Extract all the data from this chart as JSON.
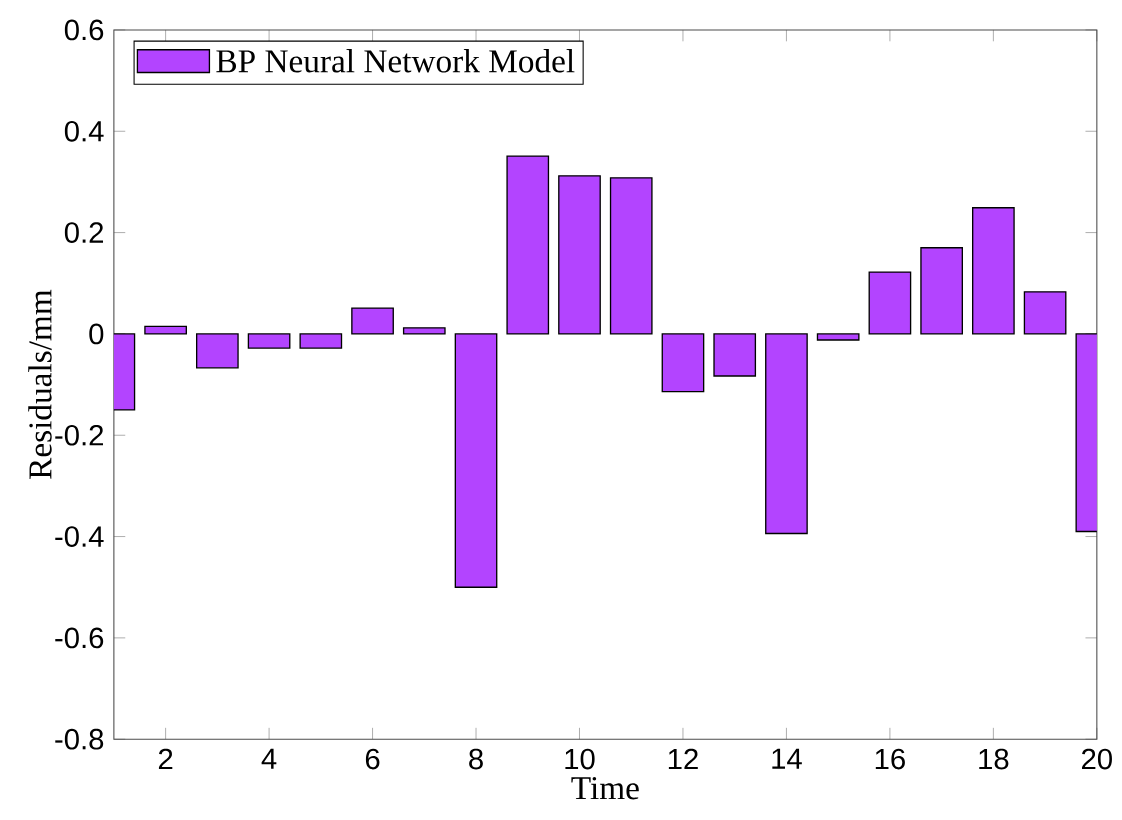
{
  "chart_data": {
    "type": "bar",
    "xlabel": "Time",
    "ylabel": "Residuals/mm",
    "legend": "top left",
    "x": [
      1,
      2,
      3,
      4,
      5,
      6,
      7,
      8,
      9,
      10,
      11,
      12,
      13,
      14,
      15,
      16,
      17,
      18,
      19,
      20
    ],
    "series": [
      {
        "name": "BP Neural Network Model",
        "color": "#b344ff",
        "values": [
          -0.15,
          0.015,
          -0.067,
          -0.028,
          -0.028,
          0.051,
          0.012,
          -0.5,
          0.351,
          0.312,
          0.308,
          -0.114,
          -0.083,
          -0.394,
          -0.012,
          0.122,
          0.17,
          0.249,
          0.083,
          -0.39
        ]
      }
    ],
    "xlim": [
      1,
      20
    ],
    "xticks": [
      2,
      4,
      6,
      8,
      10,
      12,
      14,
      16,
      18,
      20
    ],
    "ylim": [
      -0.8,
      0.6
    ],
    "yticks": [
      -0.8,
      -0.6,
      -0.4,
      -0.2,
      0,
      0.2,
      0.4,
      0.6
    ]
  }
}
